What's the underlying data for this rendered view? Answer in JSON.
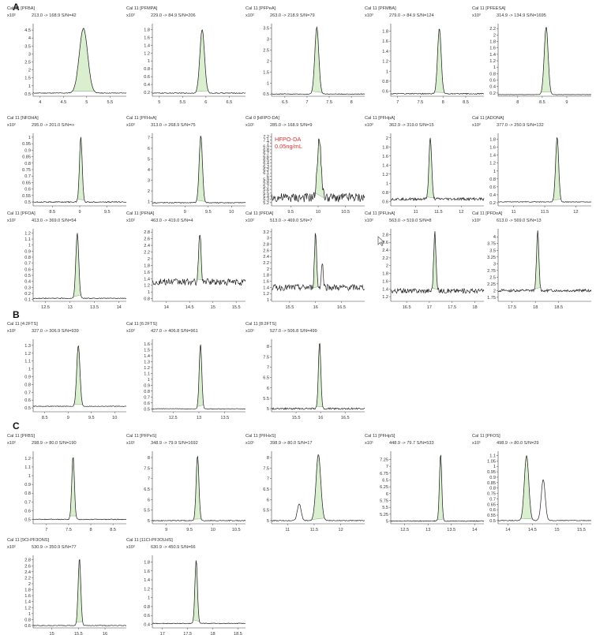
{
  "sections": [
    {
      "label": "A"
    },
    {
      "label": "B"
    },
    {
      "label": "C"
    }
  ],
  "colors": {
    "peak_fill": "#d9efd0",
    "trace": "#222222",
    "axis": "#444444",
    "annotation": "#e23333"
  },
  "icons": [
    "mouse-cursor-icon"
  ],
  "chart_data": [
    {
      "type": "line",
      "section": "A",
      "title": "Cal 11 [PFBA]",
      "scale": "x10²",
      "transition": "213.0 -> 168.9 S/N=42",
      "x_ticks": [
        4,
        4.5,
        5,
        5.5
      ],
      "y_ticks": [
        0.5,
        1,
        1.5,
        2,
        2.5,
        3,
        3.5,
        4,
        4.5
      ],
      "xlim": [
        3.85,
        5.85
      ],
      "ylim": [
        0.35,
        4.9
      ],
      "peak": {
        "rt": 4.93,
        "height": 4.6,
        "width": 0.09
      },
      "baseline": 0.55,
      "noise": 0.02
    },
    {
      "type": "line",
      "section": "A",
      "title": "Cal 11 [PFMPA]",
      "scale": "x10²",
      "transition": "229.0 -> 84.9 S/N=206",
      "x_ticks": [
        5,
        5.5,
        6,
        6.5
      ],
      "y_ticks": [
        0.2,
        0.4,
        0.6,
        0.8,
        1,
        1.2,
        1.4,
        1.6,
        1.8
      ],
      "xlim": [
        4.85,
        6.85
      ],
      "ylim": [
        0.1,
        1.95
      ],
      "peak": {
        "rt": 5.92,
        "height": 1.8,
        "width": 0.05
      },
      "baseline": 0.18,
      "noise": 0.01
    },
    {
      "type": "line",
      "section": "A",
      "title": "Cal 11 [PFPeA]",
      "scale": "x10²",
      "transition": "263.0 -> 218.9 S/N=79",
      "x_ticks": [
        6.5,
        7,
        7.5,
        8
      ],
      "y_ticks": [
        0.5,
        1,
        1.5,
        2,
        2.5,
        3,
        3.5
      ],
      "xlim": [
        6.2,
        8.3
      ],
      "ylim": [
        0.4,
        3.7
      ],
      "peak": {
        "rt": 7.22,
        "height": 3.55,
        "width": 0.045
      },
      "baseline": 0.5,
      "noise": 0.015
    },
    {
      "type": "line",
      "section": "A",
      "title": "Cal 11 [PFMBA]",
      "scale": "x10²",
      "transition": "279.0 -> 84.9 S/N=124",
      "x_ticks": [
        7,
        7.5,
        8,
        8.5
      ],
      "y_ticks": [
        0.6,
        0.8,
        1,
        1.2,
        1.4,
        1.6,
        1.8
      ],
      "xlim": [
        6.85,
        8.9
      ],
      "ylim": [
        0.5,
        1.95
      ],
      "peak": {
        "rt": 7.92,
        "height": 1.85,
        "width": 0.04
      },
      "baseline": 0.55,
      "noise": 0.01
    },
    {
      "type": "line",
      "section": "A",
      "title": "Cal 11 [PFEESA]",
      "scale": "x10²",
      "transition": "314.9 -> 134.9 S/N=1695",
      "x_ticks": [
        8,
        8.5,
        9
      ],
      "y_ticks": [
        0.2,
        0.4,
        0.6,
        0.8,
        1,
        1.2,
        1.4,
        1.6,
        1.8,
        2,
        2.2
      ],
      "xlim": [
        7.6,
        9.5
      ],
      "ylim": [
        0.1,
        2.35
      ],
      "peak": {
        "rt": 8.58,
        "height": 2.25,
        "width": 0.04
      },
      "baseline": 0.15,
      "noise": 0.004
    },
    {
      "type": "line",
      "section": "A",
      "title": "Cal 11 [NFDHA]",
      "scale": "x10²",
      "transition": "295.0 -> 201.0 S/N=∞",
      "x_ticks": [
        8.5,
        9,
        9.5
      ],
      "y_ticks": [
        0.5,
        0.55,
        0.6,
        0.65,
        0.7,
        0.75,
        0.8,
        0.85,
        0.9,
        0.95,
        1
      ],
      "xlim": [
        8.15,
        9.85
      ],
      "ylim": [
        0.47,
        1.03
      ],
      "peak": {
        "rt": 9.02,
        "height": 1.0,
        "width": 0.025
      },
      "baseline": 0.5,
      "noise": 0.004
    },
    {
      "type": "line",
      "section": "A",
      "title": "Cal 11 [PFHxA]",
      "scale": "x10²",
      "transition": "313.0 -> 268.9 S/N=75",
      "x_ticks": [
        9,
        9.5,
        10
      ],
      "y_ticks": [
        1,
        2,
        3,
        4,
        5,
        6,
        7
      ],
      "xlim": [
        8.3,
        10.3
      ],
      "ylim": [
        0.6,
        7.4
      ],
      "peak": {
        "rt": 9.34,
        "height": 7.2,
        "width": 0.035
      },
      "baseline": 0.9,
      "noise": 0.04
    },
    {
      "type": "line",
      "section": "A",
      "title": "Cal 0 [HFPO-DA]",
      "scale": "x10¹",
      "transition": "285.0 -> 168.9 S/N=9",
      "x_ticks": [
        9.5,
        10,
        10.5
      ],
      "y_ticks": [
        5.2,
        5.3,
        5.4,
        5.5,
        5.6,
        5.7,
        5.8,
        5.9,
        6,
        6.1,
        6.2,
        6.3,
        6.4,
        6.5,
        6.6,
        6.7,
        6.8,
        6.9,
        7,
        7.1,
        7.2
      ],
      "xlim": [
        9.15,
        10.85
      ],
      "ylim": [
        5.1,
        7.3
      ],
      "peak": {
        "rt": 10.02,
        "height": 7.1,
        "width": 0.035
      },
      "baseline": 5.35,
      "noise": 0.14,
      "annotation": [
        "HFPO-DA",
        "0.05ng/mL"
      ]
    },
    {
      "type": "line",
      "section": "A",
      "title": "Cal 11 [PFHpA]",
      "scale": "x10²",
      "transition": "362.9 -> 319.0 S/N=15",
      "x_ticks": [
        11,
        11.5,
        12
      ],
      "y_ticks": [
        0.6,
        0.8,
        1,
        1.2,
        1.4,
        1.6,
        1.8,
        2
      ],
      "xlim": [
        10.45,
        12.5
      ],
      "ylim": [
        0.5,
        2.1
      ],
      "peak": {
        "rt": 11.32,
        "height": 2.0,
        "width": 0.03
      },
      "baseline": 0.65,
      "noise": 0.03
    },
    {
      "type": "line",
      "section": "A",
      "title": "Cal 11 [ADONA]",
      "scale": "x10²",
      "transition": "377.0 -> 250.9 S/N=132",
      "x_ticks": [
        11,
        11.5,
        12
      ],
      "y_ticks": [
        0.2,
        0.4,
        0.6,
        0.8,
        1,
        1.2,
        1.4,
        1.6,
        1.8
      ],
      "xlim": [
        10.75,
        12.25
      ],
      "ylim": [
        0.12,
        1.95
      ],
      "peak": {
        "rt": 11.7,
        "height": 1.85,
        "width": 0.025
      },
      "baseline": 0.22,
      "noise": 0.008
    },
    {
      "type": "line",
      "section": "A",
      "title": "Cal 11 [PFOA]",
      "scale": "x10²",
      "transition": "413.0 -> 369.0 S/N=54",
      "x_ticks": [
        12.5,
        13,
        13.5,
        14
      ],
      "y_ticks": [
        0.1,
        0.2,
        0.3,
        0.4,
        0.5,
        0.6,
        0.7,
        0.8,
        0.9,
        1,
        1.1,
        1.2
      ],
      "xlim": [
        12.25,
        14.15
      ],
      "ylim": [
        0.07,
        1.27
      ],
      "peak": {
        "rt": 13.15,
        "height": 1.2,
        "width": 0.03
      },
      "baseline": 0.12,
      "noise": 0.006
    },
    {
      "type": "line",
      "section": "A",
      "title": "Cal 11 [PFNA]",
      "scale": "x10²",
      "transition": "463.0 -> 419.0 S/N=4",
      "x_ticks": [
        14,
        14.5,
        15,
        15.5
      ],
      "y_ticks": [
        0.8,
        1,
        1.2,
        1.4,
        1.6,
        1.8,
        2,
        2.2,
        2.4,
        2.6,
        2.8
      ],
      "xlim": [
        13.7,
        15.7
      ],
      "ylim": [
        0.72,
        2.9
      ],
      "peak": {
        "rt": 14.72,
        "height": 2.8,
        "width": 0.025
      },
      "baseline": 1.3,
      "noise": 0.1
    },
    {
      "type": "line",
      "section": "A",
      "title": "Cal 11 [PFDA]",
      "scale": "x10²",
      "transition": "513.0 -> 469.0 S/N=7",
      "x_ticks": [
        15.5,
        16,
        16.5
      ],
      "y_ticks": [
        1,
        1.2,
        1.4,
        1.6,
        1.8,
        2,
        2.2,
        2.4,
        2.6,
        2.8,
        3,
        3.2
      ],
      "xlim": [
        15.15,
        16.95
      ],
      "ylim": [
        0.95,
        3.3
      ],
      "peak": {
        "rt": 16.0,
        "height": 3.2,
        "width": 0.02
      },
      "baseline": 1.4,
      "noise": 0.1,
      "secondary": {
        "rt": 16.13,
        "height": 2.2,
        "width": 0.018
      }
    },
    {
      "type": "line",
      "section": "A",
      "title": "Cal 11 [PFUnA]",
      "scale": "x10²",
      "transition": "563.0 -> 519.0 S/N=8",
      "x_ticks": [
        16.5,
        17,
        17.5,
        18
      ],
      "y_ticks": [
        1.2,
        1.4,
        1.6,
        1.8,
        2,
        2.2,
        2.4,
        2.6,
        2.8
      ],
      "xlim": [
        16.15,
        18.2
      ],
      "ylim": [
        1.08,
        2.95
      ],
      "peak": {
        "rt": 17.12,
        "height": 2.85,
        "width": 0.025
      },
      "baseline": 1.35,
      "noise": 0.06
    },
    {
      "type": "line",
      "section": "A",
      "title": "Cal 11 [PFDoA]",
      "scale": "x10²",
      "transition": "613.0 -> 569.0 S/N=13",
      "x_ticks": [
        17.5,
        18,
        18.5
      ],
      "y_ticks": [
        1.75,
        2,
        2.25,
        2.5,
        2.75,
        3,
        3.25,
        3.5,
        3.75,
        4
      ],
      "xlim": [
        17.2,
        19.2
      ],
      "ylim": [
        1.6,
        4.3
      ],
      "peak": {
        "rt": 18.05,
        "height": 4.2,
        "width": 0.025
      },
      "baseline": 2.0,
      "noise": 0.05
    },
    {
      "type": "line",
      "section": "B",
      "title": "Cal 11 [4:2FTS]",
      "scale": "x10²",
      "transition": "327.0 -> 306.9 S/N=939",
      "x_ticks": [
        8.5,
        9,
        9.5,
        10
      ],
      "y_ticks": [
        0.5,
        0.6,
        0.7,
        0.8,
        0.9,
        1,
        1.1,
        1.2,
        1.3
      ],
      "xlim": [
        8.25,
        10.25
      ],
      "ylim": [
        0.45,
        1.38
      ],
      "peak": {
        "rt": 9.22,
        "height": 1.3,
        "width": 0.035
      },
      "baseline": 0.52,
      "noise": 0.004
    },
    {
      "type": "line",
      "section": "B",
      "title": "Cal 11 [6:2FTS]",
      "scale": "x10²",
      "transition": "427.0 -> 406.8 S/N=961",
      "x_ticks": [
        12.5,
        13,
        13.5
      ],
      "y_ticks": [
        0.5,
        0.6,
        0.7,
        0.8,
        0.9,
        1,
        1.1,
        1.2,
        1.3,
        1.4,
        1.5,
        1.6
      ],
      "xlim": [
        12.1,
        13.9
      ],
      "ylim": [
        0.45,
        1.68
      ],
      "peak": {
        "rt": 13.03,
        "height": 1.6,
        "width": 0.025
      },
      "baseline": 0.5,
      "noise": 0.004
    },
    {
      "type": "line",
      "section": "B",
      "title": "Cal 11 [8:2FTS]",
      "scale": "x10¹",
      "transition": "527.0 -> 506.8 S/N=499",
      "x_ticks": [
        15.5,
        16,
        16.5
      ],
      "y_ticks": [
        5,
        5.5,
        6,
        6.5,
        7,
        7.5,
        8
      ],
      "xlim": [
        15.0,
        16.9
      ],
      "ylim": [
        4.85,
        8.35
      ],
      "peak": {
        "rt": 15.98,
        "height": 8.2,
        "width": 0.025
      },
      "baseline": 5.0,
      "noise": 0.04
    },
    {
      "type": "line",
      "section": "C",
      "title": "Cal 11 [PFBS]",
      "scale": "x10²",
      "transition": "298.9 -> 80.0 S/N=190",
      "x_ticks": [
        7,
        7.5,
        8,
        8.5
      ],
      "y_ticks": [
        0.5,
        0.6,
        0.7,
        0.8,
        0.9,
        1,
        1.1,
        1.2
      ],
      "xlim": [
        6.7,
        8.8
      ],
      "ylim": [
        0.45,
        1.28
      ],
      "peak": {
        "rt": 7.6,
        "height": 1.22,
        "width": 0.03
      },
      "baseline": 0.5,
      "noise": 0.004
    },
    {
      "type": "line",
      "section": "C",
      "title": "Cal 11 [PFPeS]",
      "scale": "x10¹",
      "transition": "348.9 -> 79.9 S/N=1692",
      "x_ticks": [
        9,
        9.5,
        10,
        10.5
      ],
      "y_ticks": [
        5,
        5.5,
        6,
        6.5,
        7,
        7.5,
        8
      ],
      "xlim": [
        8.7,
        10.7
      ],
      "ylim": [
        4.85,
        8.3
      ],
      "peak": {
        "rt": 9.67,
        "height": 8.1,
        "width": 0.03
      },
      "baseline": 5.0,
      "noise": 0.02
    },
    {
      "type": "line",
      "section": "C",
      "title": "Cal 11 [PFHxS]",
      "scale": "x10¹",
      "transition": "398.9 -> 80.0 S/N=17",
      "x_ticks": [
        11,
        11.5,
        12
      ],
      "y_ticks": [
        5,
        5.5,
        6,
        6.5,
        7,
        7.5,
        8
      ],
      "xlim": [
        10.7,
        12.45
      ],
      "ylim": [
        4.85,
        8.3
      ],
      "peak": {
        "rt": 11.58,
        "height": 8.15,
        "width": 0.045
      },
      "baseline": 5.0,
      "noise": 0.02,
      "secondary": {
        "rt": 11.22,
        "height": 5.8,
        "width": 0.035
      }
    },
    {
      "type": "line",
      "section": "C",
      "title": "Cal 11 [PFHpS]",
      "scale": "x10¹",
      "transition": "448.9 -> 79.7 S/N=533",
      "x_ticks": [
        12.5,
        13,
        13.5,
        14
      ],
      "y_ticks": [
        5,
        5.25,
        5.5,
        5.75,
        6,
        6.25,
        6.5,
        6.75,
        7,
        7.25
      ],
      "xlim": [
        12.2,
        14.2
      ],
      "ylim": [
        4.9,
        7.55
      ],
      "peak": {
        "rt": 13.27,
        "height": 7.45,
        "width": 0.025
      },
      "baseline": 5.0,
      "noise": 0.015
    },
    {
      "type": "line",
      "section": "C",
      "title": "Cal 11 [PFOS]",
      "scale": "x10¹",
      "transition": "498.9 -> 80.0 S/N=29",
      "x_ticks": [
        14,
        14.5,
        15,
        15.5
      ],
      "y_ticks": [
        0.5,
        0.55,
        0.6,
        0.65,
        0.7,
        0.75,
        0.8,
        0.85,
        0.9,
        0.95,
        1,
        1.05,
        1.1
      ],
      "xlim": [
        13.8,
        15.7
      ],
      "ylim": [
        0.47,
        1.14
      ],
      "peak": {
        "rt": 14.38,
        "height": 1.1,
        "width": 0.045
      },
      "baseline": 0.5,
      "noise": 0.003,
      "secondary": {
        "rt": 14.72,
        "height": 0.88,
        "width": 0.04
      }
    },
    {
      "type": "line",
      "section": "C",
      "title": "Cal 11 [9Cl-PF3ONS]",
      "scale": "x10²",
      "transition": "530.9 -> 350.9 S/N=77",
      "x_ticks": [
        15,
        15.5,
        16
      ],
      "y_ticks": [
        0.6,
        0.8,
        1,
        1.2,
        1.4,
        1.6,
        1.8,
        2,
        2.2,
        2.4,
        2.6,
        2.8
      ],
      "xlim": [
        14.65,
        16.4
      ],
      "ylim": [
        0.52,
        2.95
      ],
      "peak": {
        "rt": 15.52,
        "height": 2.85,
        "width": 0.025
      },
      "baseline": 0.6,
      "noise": 0.01
    },
    {
      "type": "line",
      "section": "C",
      "title": "Cal 11 [11Cl-PF3OUdS]",
      "scale": "x10²",
      "transition": "630.9 -> 450.9 S/N=66",
      "x_ticks": [
        17,
        17.5,
        18,
        18.5
      ],
      "y_ticks": [
        0.4,
        0.6,
        0.8,
        1,
        1.2,
        1.4,
        1.6,
        1.8
      ],
      "xlim": [
        16.8,
        18.65
      ],
      "ylim": [
        0.32,
        1.95
      ],
      "peak": {
        "rt": 17.67,
        "height": 1.85,
        "width": 0.025
      },
      "baseline": 0.42,
      "noise": 0.008
    }
  ]
}
